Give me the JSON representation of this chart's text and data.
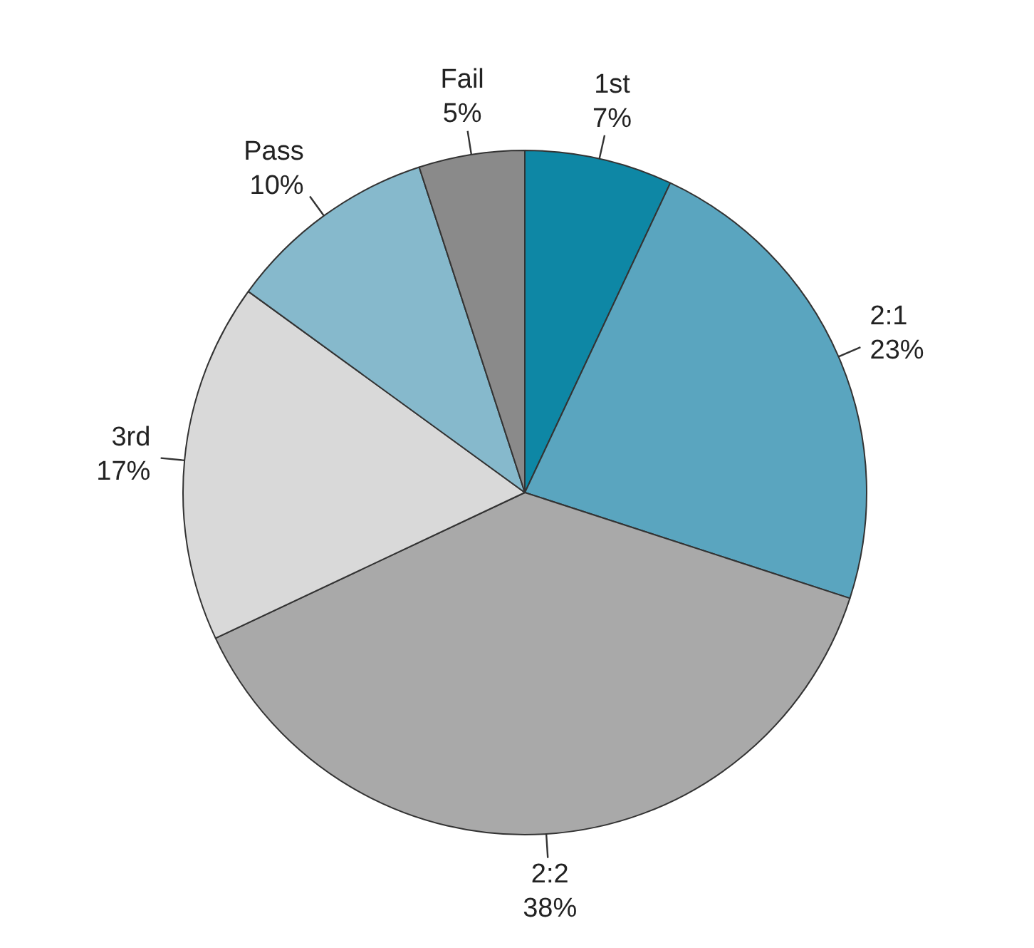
{
  "chart_data": {
    "type": "pie",
    "categories": [
      "1st",
      "2:1",
      "2:2",
      "3rd",
      "Pass",
      "Fail"
    ],
    "values": [
      7,
      23,
      38,
      17,
      10,
      5
    ],
    "colors": [
      "#0e87a5",
      "#5aa5bf",
      "#a9a9a9",
      "#d9d9d9",
      "#86b9cc",
      "#8a8a8a"
    ],
    "value_labels": [
      "7%",
      "23%",
      "38%",
      "17%",
      "10%",
      "5%"
    ]
  }
}
